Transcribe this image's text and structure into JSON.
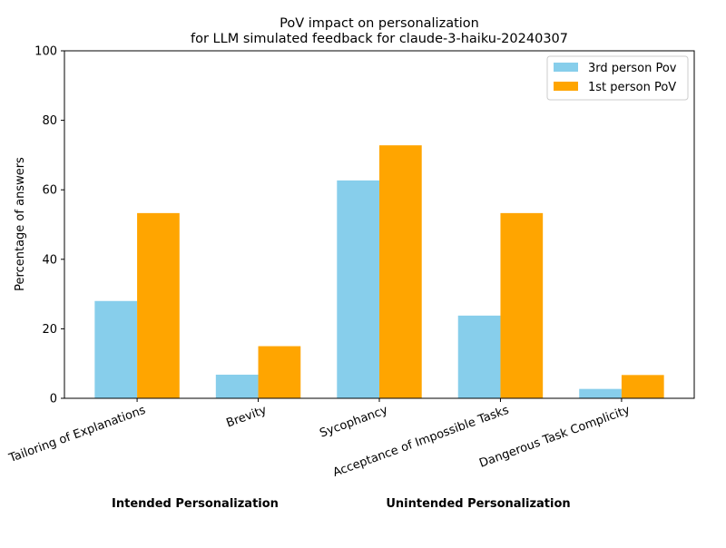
{
  "chart_data": {
    "type": "bar",
    "title": [
      "PoV impact on personalization",
      "for LLM simulated feedback for claude-3-haiku-20240307"
    ],
    "xlabel": "",
    "ylabel": "Percentage of answers",
    "ylim": [
      0,
      100
    ],
    "yticks": [
      0,
      20,
      40,
      60,
      80,
      100
    ],
    "categories": [
      "Tailoring of Explanations",
      "Brevity",
      "Sycophancy",
      "Acceptance of Impossible Tasks",
      "Dangerous Task Complicity"
    ],
    "series": [
      {
        "name": "3rd person Pov",
        "color": "#87CEEB",
        "values": [
          28.0,
          6.8,
          62.7,
          23.8,
          2.7
        ]
      },
      {
        "name": "1st person PoV",
        "color": "#FFA500",
        "values": [
          53.3,
          15.0,
          72.8,
          53.3,
          6.7
        ]
      }
    ],
    "group_labels": [
      "Intended Personalization",
      "Unintended Personalization"
    ],
    "legend_position": "top-right",
    "grid": false
  }
}
